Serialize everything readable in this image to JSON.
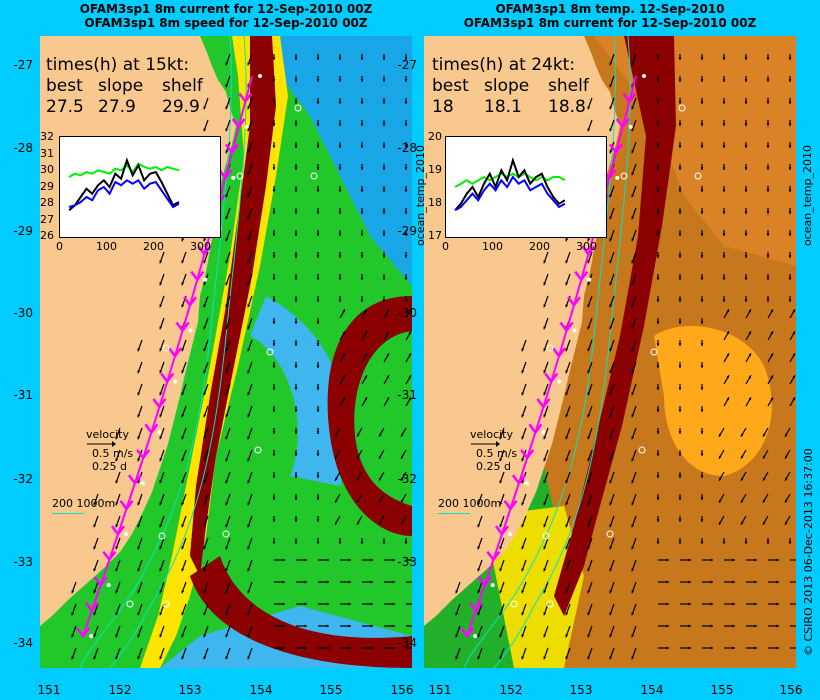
{
  "left_panel": {
    "title_line1": "OFAM3sp1 8m current for 12-Sep-2010 00Z",
    "title_line2": "OFAM3sp1 8m speed for 12-Sep-2010 00Z",
    "times_header": "times(h) at 15kt:",
    "col_labels": [
      "best",
      "slope",
      "shelf"
    ],
    "col_values": [
      "27.5",
      "27.9",
      "29.9"
    ],
    "inset_yticks": [
      "32",
      "31",
      "30",
      "29",
      "28",
      "27",
      "26"
    ],
    "inset_xticks": [
      "0",
      "100",
      "200",
      "300"
    ],
    "inset_series": [
      {
        "color": "#00ee00",
        "values": [
          29.6,
          29.8,
          29.7,
          29.9,
          29.8,
          30.0,
          29.9,
          29.8,
          30.1,
          30.0,
          30.3,
          29.9,
          30.4,
          30.2,
          30.1,
          30.2,
          30.0,
          30.2,
          30.1,
          30.0
        ]
      },
      {
        "color": "#000000",
        "values": [
          27.6,
          27.9,
          28.4,
          28.9,
          28.6,
          29.1,
          29.4,
          29.0,
          29.8,
          29.5,
          30.6,
          29.7,
          30.3,
          29.4,
          29.8,
          29.9,
          29.3,
          28.6,
          27.9,
          28.1
        ]
      },
      {
        "color": "#0000ff",
        "values": [
          27.8,
          27.9,
          28.1,
          28.4,
          28.2,
          28.8,
          29.0,
          28.6,
          29.3,
          29.1,
          29.4,
          29.2,
          29.4,
          28.9,
          29.2,
          29.3,
          28.8,
          28.3,
          27.8,
          28.0
        ]
      }
    ],
    "right_vertical": "ocean_temp_2010"
  },
  "right_panel": {
    "title_line1": "OFAM3sp1 8m temp. 12-Sep-2010",
    "title_line2": "OFAM3sp1 8m current for 12-Sep-2010 00Z",
    "times_header": "times(h) at 24kt:",
    "col_labels": [
      "best",
      "slope",
      "shelf"
    ],
    "col_values": [
      "18",
      "18.1",
      "18.8"
    ],
    "inset_yticks": [
      "20",
      "19",
      "18",
      "17"
    ],
    "inset_xticks": [
      "0",
      "100",
      "200",
      "300"
    ],
    "inset_series": [
      {
        "color": "#00ee00",
        "values": [
          18.5,
          18.6,
          18.7,
          18.6,
          18.7,
          18.8,
          18.7,
          18.8,
          18.9,
          18.8,
          18.9,
          18.8,
          18.9,
          18.8,
          18.7,
          18.8,
          18.7,
          18.8,
          18.8,
          18.7
        ]
      },
      {
        "color": "#000000",
        "values": [
          17.8,
          18.0,
          18.3,
          18.5,
          18.2,
          18.6,
          18.9,
          18.5,
          19.0,
          18.7,
          19.3,
          18.8,
          19.0,
          18.6,
          18.8,
          18.9,
          18.5,
          18.2,
          18.0,
          18.1
        ]
      },
      {
        "color": "#0000ff",
        "values": [
          17.8,
          17.9,
          18.1,
          18.3,
          18.1,
          18.4,
          18.6,
          18.4,
          18.7,
          18.5,
          18.8,
          18.6,
          18.7,
          18.4,
          18.5,
          18.6,
          18.3,
          18.1,
          17.9,
          18.0
        ]
      }
    ],
    "right_vertical": "ocean_temp_2010",
    "credit": "© CSIRO 2013   06-Dec-2013 16:37:00"
  },
  "y_axis_labels": [
    "-27",
    "-28",
    "-29",
    "-30",
    "-31",
    "-32",
    "-33",
    "-34"
  ],
  "x_axis_labels": [
    "151",
    "152",
    "153",
    "154",
    "155",
    "156"
  ],
  "velocity_key": {
    "title": "velocity",
    "line1": "0.5 m/s",
    "line2": "0.25 d"
  },
  "scale_label": "200  1000m",
  "colors": {
    "background": "#00ccff",
    "land": "#f9c88f",
    "route": "#ff00ff",
    "contour": "#00e5c0"
  }
}
